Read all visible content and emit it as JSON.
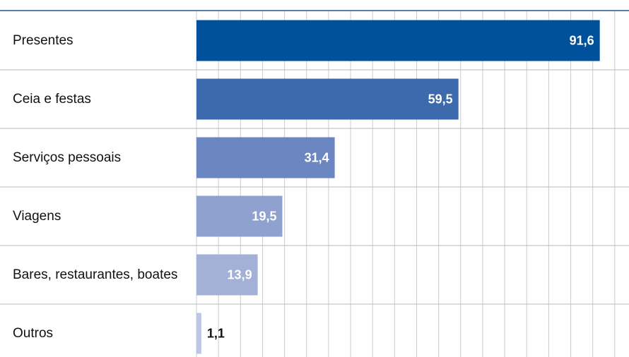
{
  "chart_data": {
    "type": "bar",
    "orientation": "horizontal",
    "title": "",
    "xlabel": "",
    "ylabel": "",
    "categories": [
      "Presentes",
      "Ceia e festas",
      "Serviços pessoais",
      "Viagens",
      "Bares, restaurantes, boates",
      "Outros"
    ],
    "values": [
      91.6,
      59.5,
      31.4,
      19.5,
      13.9,
      1.1
    ],
    "value_labels": [
      "91,6",
      "59,5",
      "31,4",
      "19,5",
      "13,9",
      "1,1"
    ],
    "bar_colors": [
      "#00519c",
      "#3d69ad",
      "#6b86c0",
      "#8fa1cf",
      "#a3b1d7",
      "#bdc6e3"
    ],
    "value_label_colors": [
      "#ffffff",
      "#ffffff",
      "#ffffff",
      "#ffffff",
      "#ffffff",
      "#111111"
    ],
    "xlim": [
      0,
      100
    ],
    "grid": true,
    "legend": "none",
    "colors": {
      "top_rule": "#5b7bb5",
      "row_separator": "#b8b8b8",
      "grid": "#cccccc"
    }
  }
}
